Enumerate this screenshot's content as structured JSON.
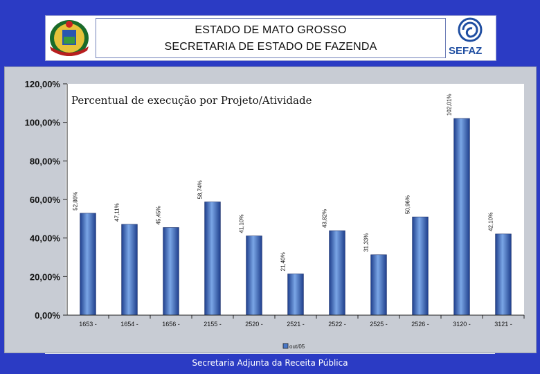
{
  "header": {
    "line1": "ESTADO DE MATO GROSSO",
    "line2": "SECRETARIA DE ESTADO DE FAZENDA",
    "logo_text": "SEFAZ"
  },
  "footer": {
    "text": "Secretaria Adjunta da Receita Pública"
  },
  "colors": {
    "background": "#2b3bc4",
    "bar": "#4a78c8",
    "panel": "#c8ccd4"
  },
  "chart_data": {
    "type": "bar",
    "title": "Percentual de execução por Projeto/Atividade",
    "categories": [
      "1653 -",
      "1654 -",
      "1656 -",
      "2155 -",
      "2520 -",
      "2521 -",
      "2522 -",
      "2525 -",
      "2526 -",
      "3120 -",
      "3121 -"
    ],
    "series": [
      {
        "name": "out/05",
        "values": [
          52.86,
          47.11,
          45.45,
          58.74,
          41.1,
          21.4,
          43.82,
          31.33,
          50.96,
          102.01,
          42.1
        ],
        "labels": [
          "52,86%",
          "47,11%",
          "45,45%",
          "58,74%",
          "41,10%",
          "21,40%",
          "43,82%",
          "31,33%",
          "50,96%",
          "102,01%",
          "42,10%"
        ]
      }
    ],
    "yticks": [
      "0,00%",
      "20,00%",
      "40,00%",
      "60,00%",
      "80,00%",
      "100,00%",
      "120,00%"
    ],
    "ylim": [
      0,
      120
    ],
    "legend_position": "bottom-center",
    "grid": false
  }
}
